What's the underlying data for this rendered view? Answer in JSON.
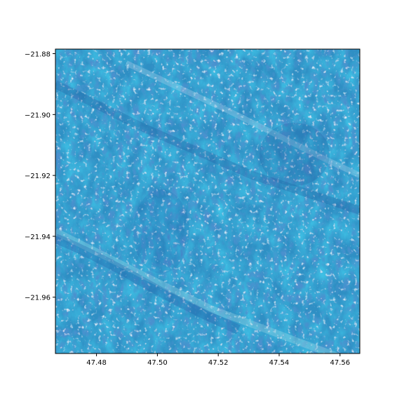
{
  "map": {
    "type": "satellite-raster",
    "colors": {
      "water_base": "#2f8fc4",
      "deep": "#1d5aa6",
      "cyan_light": "#48c9d8",
      "highlight": "#bcd6ea",
      "axes_frame": "#000000"
    },
    "x_axis": {
      "range": [
        47.4665,
        47.5665
      ],
      "ticks": [
        47.48,
        47.5,
        47.52,
        47.54,
        47.56
      ],
      "tick_labels": [
        "47.48",
        "47.50",
        "47.52",
        "47.54",
        "47.56"
      ]
    },
    "y_axis": {
      "range": [
        -21.9785,
        -21.8785
      ],
      "ticks": [
        -21.88,
        -21.9,
        -21.92,
        -21.94,
        -21.96
      ],
      "tick_labels": [
        "−21.88",
        "−21.90",
        "−21.92",
        "−21.94",
        "−21.96"
      ]
    },
    "grid": false
  }
}
